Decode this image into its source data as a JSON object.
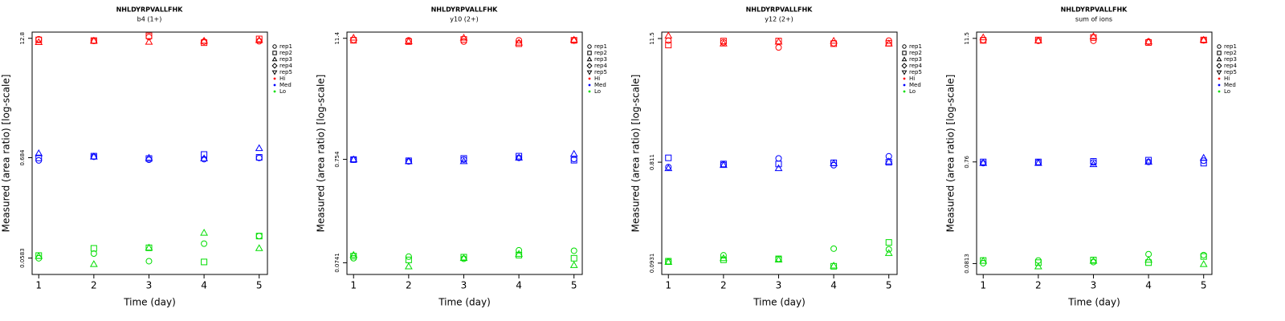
{
  "chart_data": [
    {
      "type": "scatter",
      "title": "NHLDYRPVALLFHK",
      "subtitle": "b4 (1+)",
      "xlabel": "Time (day)",
      "ylabel": "Measured (area ratio) [log-scale]",
      "x": [
        1,
        2,
        3,
        4,
        5
      ],
      "xlim": [
        0.88,
        5.15
      ],
      "xticks": [
        1,
        2,
        3,
        4,
        5
      ],
      "ylim": [
        0.039,
        14.9
      ],
      "yticks": [
        0.0583,
        0.684,
        12.8
      ],
      "log_y": true,
      "markers": [
        {
          "name": "rep1",
          "marker": "circle"
        },
        {
          "name": "rep2",
          "marker": "square"
        },
        {
          "name": "rep3",
          "marker": "triangle"
        },
        {
          "name": "rep4",
          "marker": "diamond"
        },
        {
          "name": "rep5",
          "marker": "down-triangle"
        }
      ],
      "series": [
        {
          "name": "Hi",
          "color": "#ff0000",
          "values": [
            [
              12.5,
              12.0,
              13.2,
              11.8,
              11.9
            ],
            [
              12.3,
              12.1,
              13.6,
              11.5,
              12.6
            ],
            [
              11.6,
              12.0,
              11.7,
              12.0,
              12.2
            ]
          ]
        },
        {
          "name": "Med",
          "color": "#0000ff",
          "values": [
            [
              0.64,
              0.7,
              0.65,
              0.66,
              0.68
            ],
            [
              0.68,
              0.71,
              0.67,
              0.74,
              0.69
            ],
            [
              0.76,
              0.7,
              0.68,
              0.67,
              0.86
            ]
          ]
        },
        {
          "name": "Lo",
          "color": "#00dd00",
          "values": [
            [
              0.058,
              0.065,
              0.054,
              0.083,
              0.1
            ],
            [
              0.062,
              0.074,
              0.075,
              0.053,
              0.1
            ],
            [
              0.061,
              0.05,
              0.075,
              0.108,
              0.074
            ]
          ]
        }
      ]
    },
    {
      "type": "scatter",
      "title": "NHLDYRPVALLFHK",
      "subtitle": "y10 (2+)",
      "xlabel": "Time (day)",
      "ylabel": "Measured (area ratio) [log-scale]",
      "x": [
        1,
        2,
        3,
        4,
        5
      ],
      "xlim": [
        0.88,
        5.15
      ],
      "xticks": [
        1,
        2,
        3,
        4,
        5
      ],
      "ylim": [
        0.057,
        13.1
      ],
      "yticks": [
        0.0741,
        0.754,
        11.4
      ],
      "log_y": true,
      "markers": [
        {
          "name": "rep1",
          "marker": "circle"
        },
        {
          "name": "rep2",
          "marker": "square"
        },
        {
          "name": "rep3",
          "marker": "triangle"
        },
        {
          "name": "rep4",
          "marker": "diamond"
        },
        {
          "name": "rep5",
          "marker": "down-triangle"
        }
      ],
      "series": [
        {
          "name": "Hi",
          "color": "#ff0000",
          "values": [
            [
              11.0,
              10.9,
              10.6,
              10.9,
              10.8
            ],
            [
              10.9,
              10.6,
              11.1,
              10.1,
              10.9
            ],
            [
              11.5,
              10.6,
              11.5,
              10.3,
              11.0
            ]
          ]
        },
        {
          "name": "Med",
          "color": "#0000ff",
          "values": [
            [
              0.75,
              0.72,
              0.75,
              0.78,
              0.76
            ],
            [
              0.75,
              0.73,
              0.77,
              0.81,
              0.74
            ],
            [
              0.75,
              0.72,
              0.72,
              0.78,
              0.85
            ]
          ]
        },
        {
          "name": "Lo",
          "color": "#00dd00",
          "values": [
            [
              0.082,
              0.085,
              0.081,
              0.098,
              0.097
            ],
            [
              0.086,
              0.079,
              0.084,
              0.088,
              0.082
            ],
            [
              0.088,
              0.068,
              0.082,
              0.09,
              0.07
            ]
          ]
        }
      ]
    },
    {
      "type": "scatter",
      "title": "NHLDYRPVALLFHK",
      "subtitle": "y12 (2+)",
      "xlabel": "Time (day)",
      "ylabel": "Measured (area ratio) [log-scale]",
      "x": [
        1,
        2,
        3,
        4,
        5
      ],
      "xlim": [
        0.88,
        5.15
      ],
      "xticks": [
        1,
        2,
        3,
        4,
        5
      ],
      "ylim": [
        0.073,
        13.2
      ],
      "yticks": [
        0.0931,
        0.811,
        11.5
      ],
      "log_y": true,
      "markers": [
        {
          "name": "rep1",
          "marker": "circle"
        },
        {
          "name": "rep2",
          "marker": "square"
        },
        {
          "name": "rep3",
          "marker": "triangle"
        },
        {
          "name": "rep4",
          "marker": "diamond"
        },
        {
          "name": "rep5",
          "marker": "down-triangle"
        }
      ],
      "series": [
        {
          "name": "Hi",
          "color": "#ff0000",
          "values": [
            [
              11.0,
              10.6,
              9.5,
              10.4,
              11.0
            ],
            [
              10.0,
              10.9,
              10.9,
              10.3,
              10.4
            ],
            [
              12.2,
              10.3,
              10.7,
              10.9,
              10.3
            ]
          ]
        },
        {
          "name": "Med",
          "color": "#0000ff",
          "values": [
            [
              0.73,
              0.77,
              0.88,
              0.76,
              0.92
            ],
            [
              0.89,
              0.78,
              0.78,
              0.8,
              0.81
            ],
            [
              0.71,
              0.76,
              0.71,
              0.79,
              0.82
            ]
          ]
        },
        {
          "name": "Lo",
          "color": "#00dd00",
          "values": [
            [
              0.096,
              0.11,
              0.102,
              0.127,
              0.125
            ],
            [
              0.097,
              0.1,
              0.102,
              0.087,
              0.145
            ],
            [
              0.095,
              0.103,
              0.1,
              0.088,
              0.115
            ]
          ]
        }
      ]
    },
    {
      "type": "scatter",
      "title": "NHLDYRPVALLFHK",
      "subtitle": "sum of ions",
      "xlabel": "Time (day)",
      "ylabel": "Measured (area ratio) [log-scale]",
      "x": [
        1,
        2,
        3,
        4,
        5
      ],
      "xlim": [
        0.88,
        5.15
      ],
      "xticks": [
        1,
        2,
        3,
        4,
        5
      ],
      "ylim": [
        0.064,
        13.2
      ],
      "yticks": [
        0.0813,
        0.76,
        11.5
      ],
      "log_y": true,
      "markers": [
        {
          "name": "rep1",
          "marker": "circle"
        },
        {
          "name": "rep2",
          "marker": "square"
        },
        {
          "name": "rep3",
          "marker": "triangle"
        },
        {
          "name": "rep4",
          "marker": "diamond"
        },
        {
          "name": "rep5",
          "marker": "down-triangle"
        }
      ],
      "series": [
        {
          "name": "Hi",
          "color": "#ff0000",
          "values": [
            [
              11.1,
              10.9,
              10.9,
              10.7,
              11.0
            ],
            [
              11.0,
              11.1,
              11.7,
              10.5,
              11.1
            ],
            [
              11.7,
              10.9,
              12.0,
              10.7,
              11.1
            ]
          ]
        },
        {
          "name": "Med",
          "color": "#0000ff",
          "values": [
            [
              0.74,
              0.75,
              0.75,
              0.76,
              0.78
            ],
            [
              0.76,
              0.76,
              0.77,
              0.79,
              0.74
            ],
            [
              0.74,
              0.74,
              0.72,
              0.76,
              0.83
            ]
          ]
        },
        {
          "name": "Lo",
          "color": "#00dd00",
          "values": [
            [
              0.082,
              0.087,
              0.084,
              0.1,
              0.098
            ],
            [
              0.087,
              0.083,
              0.088,
              0.083,
              0.095
            ],
            [
              0.086,
              0.076,
              0.086,
              0.088,
              0.08
            ]
          ]
        }
      ]
    }
  ]
}
